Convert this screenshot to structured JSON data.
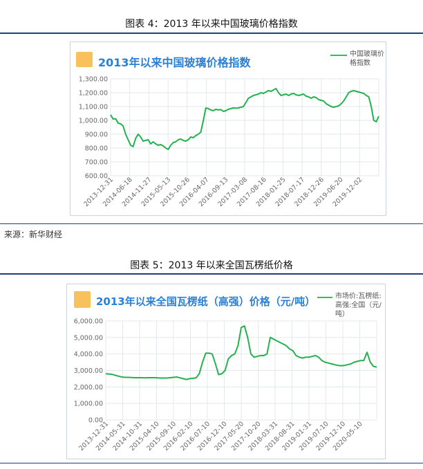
{
  "figure4": {
    "caption": "图表 4：2013 年以来中国玻璃价格指数",
    "source": "来源：新华财经",
    "chart_data": {
      "type": "line",
      "title": "2013年以来中国玻璃价格指数",
      "legend": [
        "中国玻璃价",
        "格指数"
      ],
      "ylim": [
        600,
        1300
      ],
      "yticks": [
        "600.00",
        "700.00",
        "800.00",
        "900.00",
        "1,000.00",
        "1,100.00",
        "1,200.00",
        "1,300.00"
      ],
      "xticks": [
        "2013-12-31",
        "2014-06-18",
        "2014-11-27",
        "2015-05-13",
        "2015-10-26",
        "2016-04-07",
        "2016-09-13",
        "2017-03-08",
        "2017-08-16",
        "2018-01-25",
        "2018-07-17",
        "2018-12-26",
        "2019-06-20",
        "2019-12-02"
      ],
      "series": [
        {
          "name": "中国玻璃价格指数",
          "values": [
            1040,
            1010,
            1012,
            980,
            975,
            960,
            900,
            860,
            820,
            810,
            870,
            900,
            880,
            850,
            855,
            860,
            830,
            845,
            830,
            820,
            825,
            815,
            800,
            790,
            820,
            840,
            845,
            860,
            865,
            855,
            850,
            860,
            880,
            875,
            890,
            900,
            915,
            1000,
            1090,
            1085,
            1075,
            1070,
            1080,
            1075,
            1078,
            1065,
            1070,
            1080,
            1085,
            1090,
            1088,
            1090,
            1095,
            1100,
            1130,
            1160,
            1170,
            1180,
            1185,
            1190,
            1200,
            1195,
            1205,
            1215,
            1210,
            1220,
            1230,
            1200,
            1180,
            1185,
            1190,
            1180,
            1190,
            1195,
            1185,
            1180,
            1185,
            1190,
            1175,
            1170,
            1160,
            1170,
            1165,
            1150,
            1145,
            1140,
            1120,
            1110,
            1100,
            1095,
            1100,
            1105,
            1120,
            1140,
            1170,
            1200,
            1210,
            1215,
            1210,
            1205,
            1200,
            1195,
            1180,
            1170,
            1100,
            1000,
            990,
            1030
          ]
        }
      ]
    }
  },
  "figure5": {
    "caption": "图表 5：2013 年以来全国瓦楞纸价格",
    "chart_data": {
      "type": "line",
      "title": "2013年以来全国瓦楞纸（高强）价格",
      "title_suffix": "（元/吨）",
      "legend": [
        "市场价:瓦楞纸:",
        "高强:全国（元/",
        "吨）"
      ],
      "ylim": [
        0,
        6000
      ],
      "yticks": [
        "0.00",
        "1,000.00",
        "2,000.00",
        "3,000.00",
        "4,000.00",
        "5,000.00",
        "6,000.00"
      ],
      "xticks": [
        "2013-12-31",
        "2014-05-31",
        "2014-10-31",
        "2015-04-10",
        "2015-09-10",
        "2016-02-10",
        "2016-07-10",
        "2016-12-10",
        "2017-05-20",
        "2017-10-20",
        "2018-03-31",
        "2018-08-31",
        "2019-01-31",
        "2019-07-10",
        "2019-12-10",
        "2020-05-10"
      ],
      "series": [
        {
          "name": "市场价:瓦楞纸:高强:全国（元/吨）",
          "values": [
            2800,
            2780,
            2760,
            2700,
            2650,
            2600,
            2580,
            2580,
            2570,
            2560,
            2560,
            2560,
            2550,
            2560,
            2560,
            2560,
            2550,
            2540,
            2540,
            2540,
            2560,
            2580,
            2600,
            2550,
            2500,
            2450,
            2500,
            2520,
            2550,
            2800,
            3500,
            4050,
            4050,
            4000,
            3400,
            2750,
            2800,
            3000,
            3700,
            3900,
            4000,
            4500,
            5600,
            5700,
            5000,
            4000,
            3800,
            3850,
            3900,
            3900,
            4000,
            5000,
            4900,
            4800,
            4700,
            4600,
            4500,
            4300,
            4200,
            3900,
            3800,
            3750,
            3800,
            3800,
            3850,
            3900,
            3800,
            3600,
            3500,
            3450,
            3400,
            3350,
            3300,
            3280,
            3300,
            3350,
            3400,
            3500,
            3550,
            3600,
            3600,
            4100,
            3500,
            3250,
            3200
          ]
        }
      ]
    }
  },
  "colors": {
    "line": "#23b14d",
    "grid": "#e3e8ec",
    "axis_text": "#666666",
    "heading": "#2a7fd6",
    "badge": "#f8c15c",
    "rule": "#1f3f7a"
  }
}
